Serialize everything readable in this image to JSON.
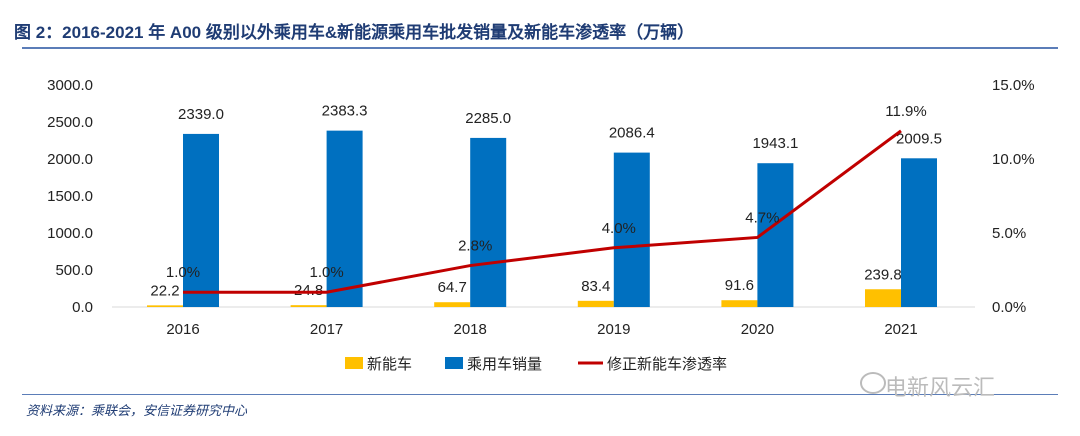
{
  "title": "图 2：2016-2021 年 A00 级别以外乘用车&新能源乘用车批发销量及新能车渗透率（万辆）",
  "source": "资料来源：乘联会，安信证券研究中心",
  "watermark": "电新风云汇",
  "chart_data": {
    "type": "bar",
    "categories": [
      "2016",
      "2017",
      "2018",
      "2019",
      "2020",
      "2021"
    ],
    "series": [
      {
        "name": "新能车",
        "type": "bar",
        "axis": "left",
        "color": "#FFC000",
        "values": [
          22.2,
          24.8,
          64.7,
          83.4,
          91.6,
          239.8
        ],
        "labels": [
          "22.2",
          "24.8",
          "64.7",
          "83.4",
          "91.6",
          "239.8"
        ]
      },
      {
        "name": "乘用车销量",
        "type": "bar",
        "axis": "left",
        "color": "#0070C0",
        "values": [
          2339.0,
          2383.3,
          2285.0,
          2086.4,
          1943.1,
          2009.5
        ],
        "labels": [
          "2339.0",
          "2383.3",
          "2285.0",
          "2086.4",
          "1943.1",
          "2009.5"
        ]
      },
      {
        "name": "修正新能车渗透率",
        "type": "line",
        "axis": "right",
        "color": "#C00000",
        "values": [
          1.0,
          1.0,
          2.8,
          4.0,
          4.7,
          11.9
        ],
        "labels": [
          "1.0%",
          "1.0%",
          "2.8%",
          "4.0%",
          "4.7%",
          "11.9%"
        ]
      }
    ],
    "left_axis": {
      "ylim": [
        0,
        3000
      ],
      "ticks": [
        "0.0",
        "500.0",
        "1000.0",
        "1500.0",
        "2000.0",
        "2500.0",
        "3000.0"
      ]
    },
    "right_axis": {
      "ylim": [
        0,
        15
      ],
      "ticks": [
        "0.0%",
        "5.0%",
        "10.0%",
        "15.0%"
      ]
    },
    "legend_position": "bottom",
    "grid": false
  }
}
